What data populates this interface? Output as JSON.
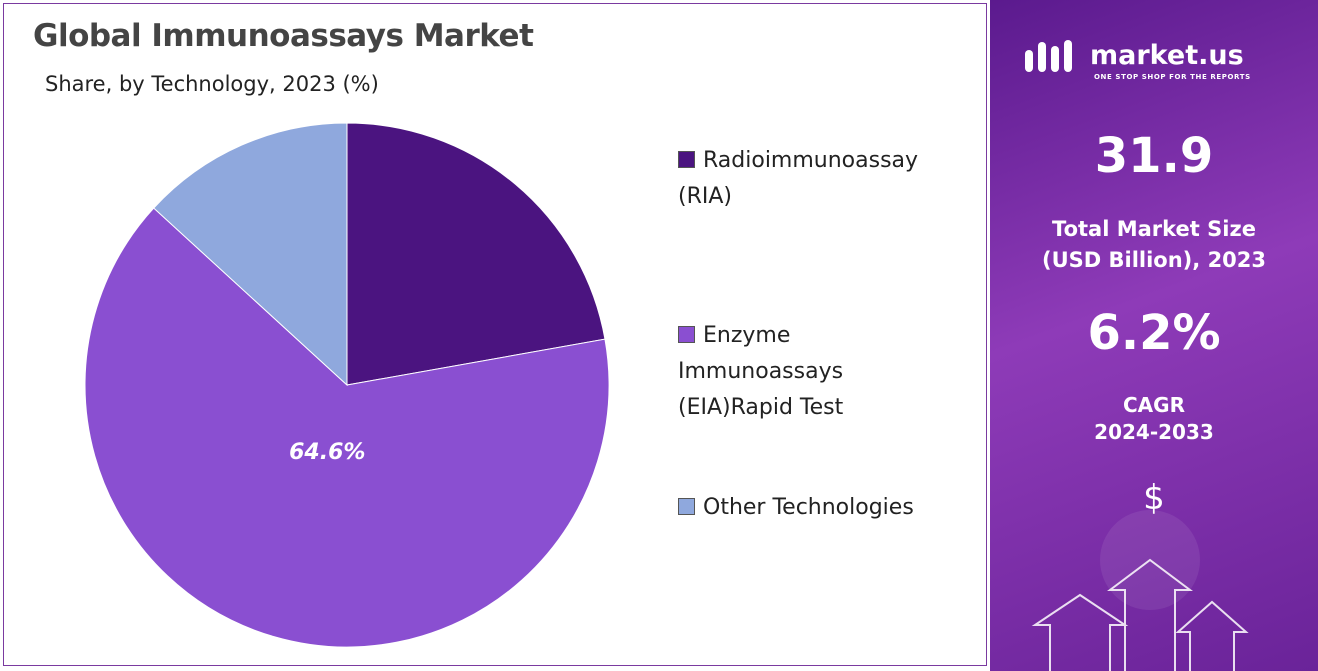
{
  "chart_data": {
    "type": "pie",
    "title": "Global Immunoassays Market",
    "subtitle": "Share, by Technology, 2023 (%)",
    "categories": [
      "Radioimmunoassay (RIA)",
      "Enzyme Immunoassays (EIA)Rapid Test",
      "Other Technologies"
    ],
    "values": [
      22.2,
      64.6,
      13.2
    ],
    "value_labels": [
      null,
      "64.6%",
      null
    ],
    "colors": [
      "#4b1480",
      "#8a4fd1",
      "#8fa8dd"
    ]
  },
  "panel": {
    "brand": "market.us",
    "tagline": "ONE STOP SHOP FOR THE REPORTS",
    "market_size": "31.9",
    "market_size_label": "Total Market Size (USD Billion), 2023",
    "cagr": "6.2%",
    "cagr_label": "CAGR",
    "cagr_period": "2024-2033",
    "currency": "$"
  }
}
